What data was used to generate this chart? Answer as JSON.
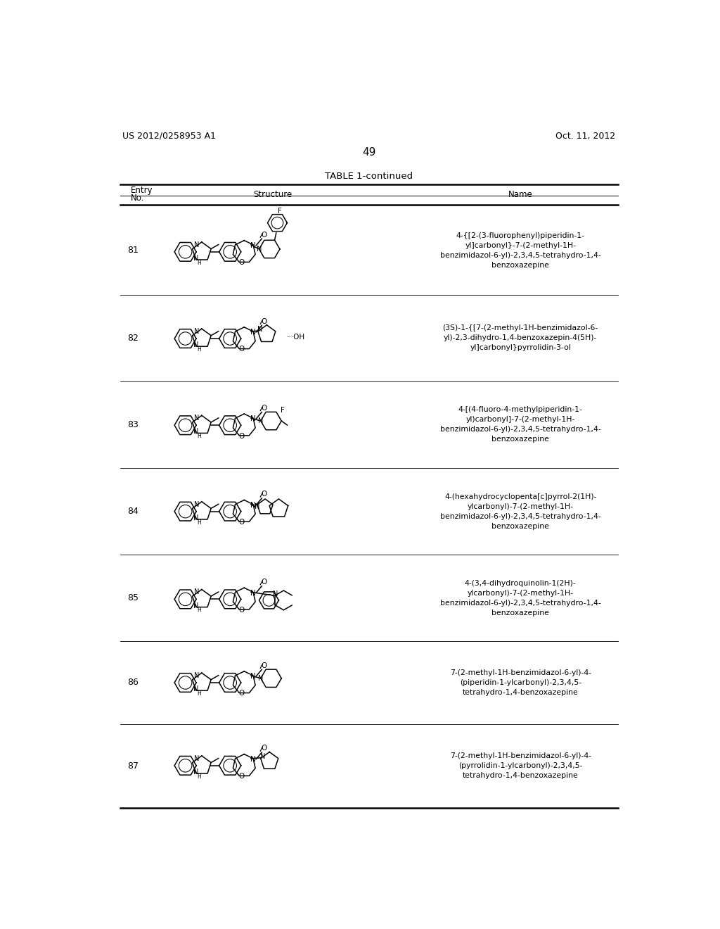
{
  "page_header_left": "US 2012/0258953 A1",
  "page_header_right": "Oct. 11, 2012",
  "page_number": "49",
  "table_title": "TABLE 1-continued",
  "bg_color": "#ffffff",
  "entries": [
    {
      "no": "81",
      "name": "4-{[2-(3-fluorophenyl)piperidin-1-\nyl]carbonyl}-7-(2-methyl-1H-\nbenzimidazol-6-yl)-2,3,4,5-tetrahydro-1,4-\nbenzoxazepine"
    },
    {
      "no": "82",
      "name": "(3S)-1-{[7-(2-methyl-1H-benzimidazol-6-\nyl)-2,3-dihydro-1,4-benzoxazepin-4(5H)-\nyl]carbonyl}pyrrolidin-3-ol"
    },
    {
      "no": "83",
      "name": "4-[(4-fluoro-4-methylpiperidin-1-\nyl)carbonyl]-7-(2-methyl-1H-\nbenzimidazol-6-yl)-2,3,4,5-tetrahydro-1,4-\nbenzoxazepine"
    },
    {
      "no": "84",
      "name": "4-(hexahydrocyclopenta[c]pyrrol-2(1H)-\nylcarbonyl)-7-(2-methyl-1H-\nbenzimidazol-6-yl)-2,3,4,5-tetrahydro-1,4-\nbenzoxazepine"
    },
    {
      "no": "85",
      "name": "4-(3,4-dihydroquinolin-1(2H)-\nylcarbonyl)-7-(2-methyl-1H-\nbenzimidazol-6-yl)-2,3,4,5-tetrahydro-1,4-\nbenzoxazepine"
    },
    {
      "no": "86",
      "name": "7-(2-methyl-1H-benzimidazol-6-yl)-4-\n(piperidin-1-ylcarbonyl)-2,3,4,5-\ntetrahydro-1,4-benzoxazepine"
    },
    {
      "no": "87",
      "name": "7-(2-methyl-1H-benzimidazol-6-yl)-4-\n(pyrrolidin-1-ylcarbonyl)-2,3,4,5-\ntetrahydro-1,4-benzoxazepine"
    }
  ]
}
